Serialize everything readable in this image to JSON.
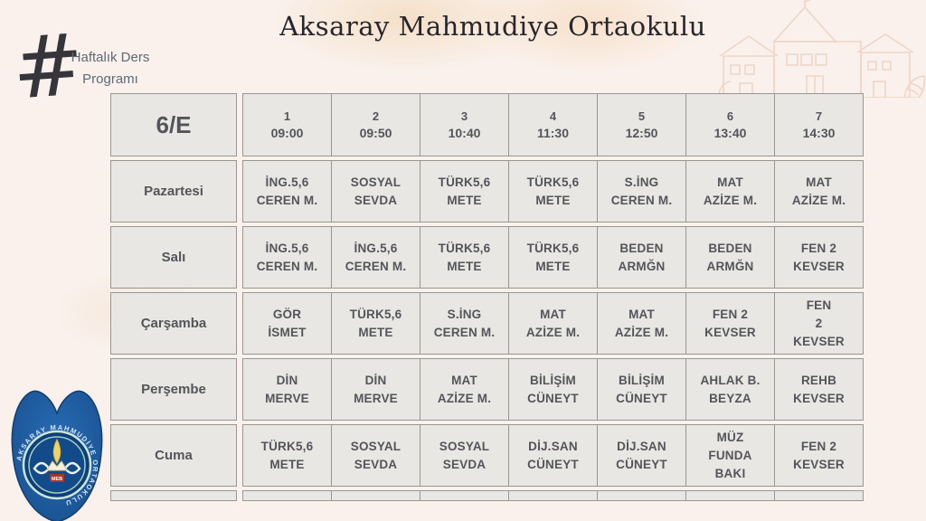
{
  "page": {
    "title": "Aksaray Mahmudiye Ortaokulu",
    "subtitle_line1": "Haftalık Ders",
    "subtitle_line2": "Programı",
    "hashtag_glyph": "#",
    "background_color": "#faf1ec",
    "cell_color": "#e9e7e4",
    "cell_border_color": "#989690",
    "cell_text_color": "#54555a",
    "subtitle_color": "#5d6975",
    "crest_blue": "#1d5ca3"
  },
  "timetable": {
    "class_label": "6/E",
    "periods": [
      {
        "num": "1",
        "time": "09:00"
      },
      {
        "num": "2",
        "time": "09:50"
      },
      {
        "num": "3",
        "time": "10:40"
      },
      {
        "num": "4",
        "time": "11:30"
      },
      {
        "num": "5",
        "time": "12:50"
      },
      {
        "num": "6",
        "time": "13:40"
      },
      {
        "num": "7",
        "time": "14:30"
      }
    ],
    "rows": [
      {
        "day": "Pazartesi",
        "cells": [
          "İNG.5,6\nCEREN M.",
          "SOSYAL\nSEVDA",
          "TÜRK5,6\nMETE",
          "TÜRK5,6\nMETE",
          "S.İNG\nCEREN M.",
          "MAT\nAZİZE M.",
          "MAT\nAZİZE M."
        ]
      },
      {
        "day": "Salı",
        "cells": [
          "İNG.5,6\nCEREN M.",
          "İNG.5,6\nCEREN M.",
          "TÜRK5,6\nMETE",
          "TÜRK5,6\nMETE",
          "BEDEN\nARMĞN",
          "BEDEN\nARMĞN",
          "FEN 2\nKEVSER"
        ]
      },
      {
        "day": "Çarşamba",
        "cells": [
          "GÖR\nİSMET",
          "TÜRK5,6\nMETE",
          "S.İNG\nCEREN M.",
          "MAT\nAZİZE M.",
          "MAT\nAZİZE M.",
          "FEN 2\nKEVSER",
          "FEN\n2\nKEVSER"
        ]
      },
      {
        "day": "Perşembe",
        "cells": [
          "DİN\nMERVE",
          "DİN\nMERVE",
          "MAT\nAZİZE M.",
          "BİLİŞİM\nCÜNEYT",
          "BİLİŞİM\nCÜNEYT",
          "AHLAK B.\nBEYZA",
          "REHB\nKEVSER"
        ]
      },
      {
        "day": "Cuma",
        "cells": [
          "TÜRK5,6\nMETE",
          "SOSYAL\nSEVDA",
          "SOSYAL\nSEVDA",
          "DİJ.SAN\nCÜNEYT",
          "DİJ.SAN\nCÜNEYT",
          "MÜZ\nFUNDA\nBAKI",
          "FEN 2\nKEVSER"
        ]
      }
    ]
  },
  "logo": {
    "ring_text": "AKSARAY MAHMUDİYE ORTAOKULU"
  }
}
